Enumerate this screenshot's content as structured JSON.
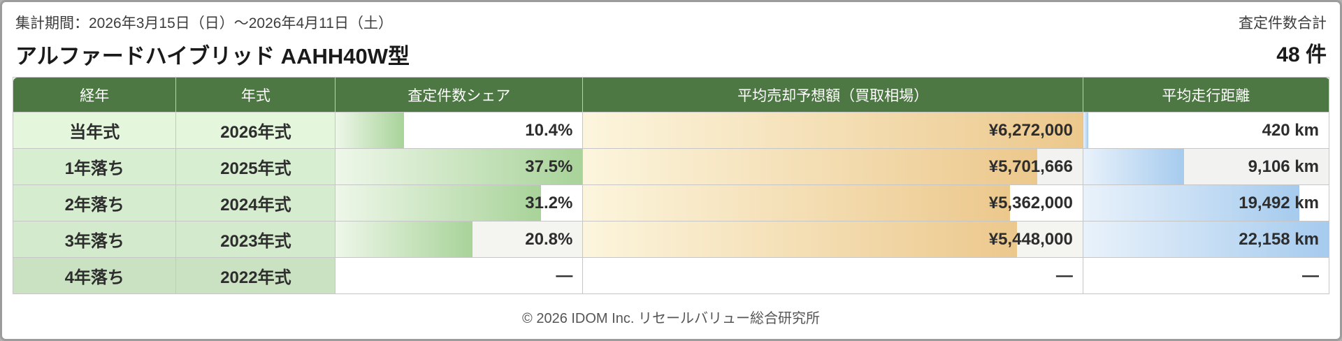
{
  "header": {
    "period_label": "集計期間：2026年3月15日（日）～2026年4月11日（土）",
    "title": "アルファードハイブリッド AAHH40W型",
    "total_label": "査定件数合計",
    "total_value": "48 件"
  },
  "table": {
    "columns": [
      "経年",
      "年式",
      "査定件数シェア",
      "平均売却予想額（買取相場）",
      "平均走行距離"
    ],
    "col_widths_pct": [
      12.4,
      12.1,
      18.8,
      38.0,
      18.7
    ],
    "rows": [
      {
        "age": "当年式",
        "year": "2026年式",
        "share": "10.4%",
        "share_bar_pct": 27.7,
        "price": "¥6,272,000",
        "price_bar_pct": 100,
        "km": "420 km",
        "km_bar_pct": 1.9,
        "tint": "#e4f7dd",
        "value_bg": "#ffffff"
      },
      {
        "age": "1年落ち",
        "year": "2025年式",
        "share": "37.5%",
        "share_bar_pct": 100,
        "price": "¥5,701,666",
        "price_bar_pct": 90.9,
        "km": "9,106 km",
        "km_bar_pct": 41.1,
        "tint": "#d8eed1",
        "value_bg": "#f2f3f0"
      },
      {
        "age": "2年落ち",
        "year": "2024年式",
        "share": "31.2%",
        "share_bar_pct": 83.2,
        "price": "¥5,362,000",
        "price_bar_pct": 85.5,
        "km": "19,492 km",
        "km_bar_pct": 88.0,
        "tint": "#d6ecce",
        "value_bg": "#ffffff"
      },
      {
        "age": "3年落ち",
        "year": "2023年式",
        "share": "20.8%",
        "share_bar_pct": 55.5,
        "price": "¥5,448,000",
        "price_bar_pct": 86.9,
        "km": "22,158 km",
        "km_bar_pct": 100,
        "tint": "#d4eacc",
        "value_bg": "#f4f4f1"
      },
      {
        "age": "4年落ち",
        "year": "2022年式",
        "share": "—",
        "share_bar_pct": 0,
        "price": "—",
        "price_bar_pct": 0,
        "km": "—",
        "km_bar_pct": 0,
        "tint": "#cae2c1",
        "value_bg": "#ffffff"
      }
    ]
  },
  "footer": {
    "copyright": "© 2026 IDOM Inc. リセールバリュー総合研究所"
  },
  "colors": {
    "header_green": "#4d7843",
    "share_bar_from": "#eef7e9",
    "share_bar_to": "#a8d399",
    "price_bar_from": "#fcf5dd",
    "price_bar_to": "#ecc88c",
    "km_bar_from": "#e9f2fb",
    "km_bar_to": "#a6cbee"
  },
  "chart_data": {
    "type": "table",
    "title": "アルファードハイブリッド AAHH40W型",
    "subtitle": "集計期間：2026年3月15日（日）～2026年4月11日（土）",
    "total_appraisal_count": 48,
    "columns": [
      "経年",
      "年式",
      "査定件数シェア",
      "平均売却予想額（買取相場）",
      "平均走行距離"
    ],
    "rows": [
      {
        "age": "当年式",
        "model_year": "2026年式",
        "share_pct": 10.4,
        "avg_price_yen": 6272000,
        "avg_mileage_km": 420
      },
      {
        "age": "1年落ち",
        "model_year": "2025年式",
        "share_pct": 37.5,
        "avg_price_yen": 5701666,
        "avg_mileage_km": 9106
      },
      {
        "age": "2年落ち",
        "model_year": "2024年式",
        "share_pct": 31.2,
        "avg_price_yen": 5362000,
        "avg_mileage_km": 19492
      },
      {
        "age": "3年落ち",
        "model_year": "2023年式",
        "share_pct": 20.8,
        "avg_price_yen": 5448000,
        "avg_mileage_km": 22158
      },
      {
        "age": "4年落ち",
        "model_year": "2022年式",
        "share_pct": null,
        "avg_price_yen": null,
        "avg_mileage_km": null
      }
    ],
    "notes": "Bars in each value column are scaled relative to the column maximum (37.5%, ¥6,272,000, 22,158 km)."
  }
}
